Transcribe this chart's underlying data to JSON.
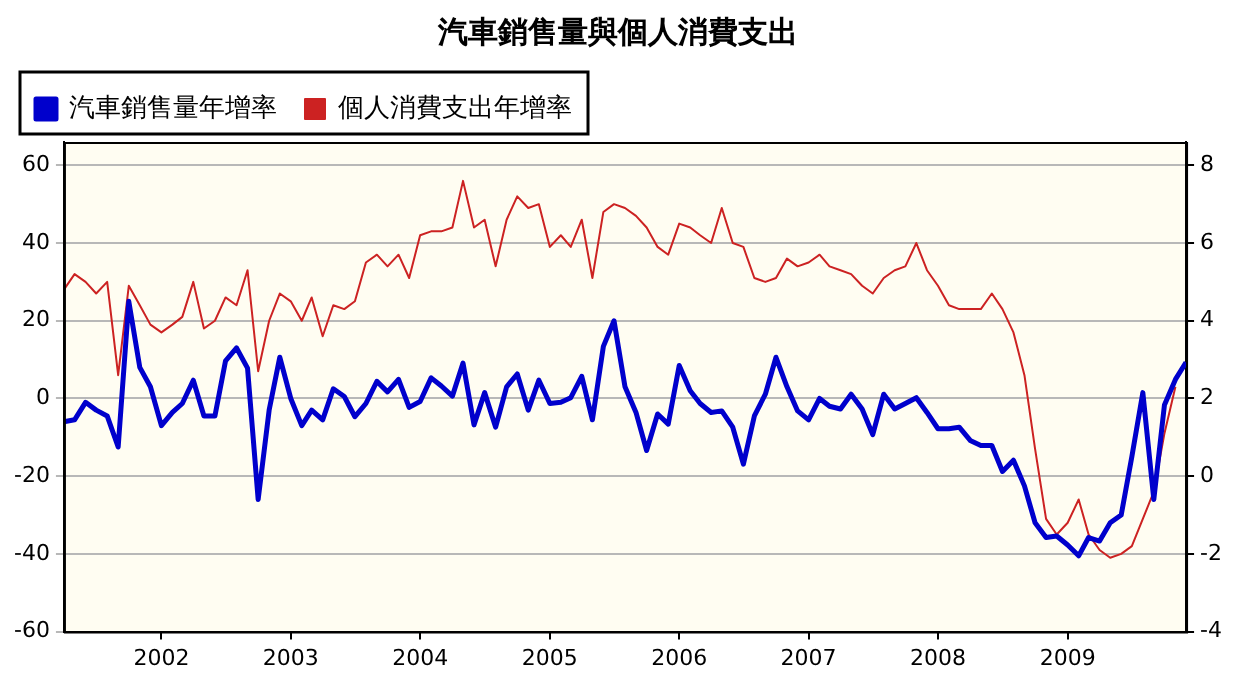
{
  "chart_data": {
    "type": "line",
    "title": "汽車銷售量與個人消費支出",
    "x": [
      "2001-04",
      "2001-05",
      "2001-06",
      "2001-07",
      "2001-08",
      "2001-09",
      "2001-10",
      "2001-11",
      "2001-12",
      "2002-01",
      "2002-02",
      "2002-03",
      "2002-04",
      "2002-05",
      "2002-06",
      "2002-07",
      "2002-08",
      "2002-09",
      "2002-10",
      "2002-11",
      "2002-12",
      "2003-01",
      "2003-02",
      "2003-03",
      "2003-04",
      "2003-05",
      "2003-06",
      "2003-07",
      "2003-08",
      "2003-09",
      "2003-10",
      "2003-11",
      "2003-12",
      "2004-01",
      "2004-02",
      "2004-03",
      "2004-04",
      "2004-05",
      "2004-06",
      "2004-07",
      "2004-08",
      "2004-09",
      "2004-10",
      "2004-11",
      "2004-12",
      "2005-01",
      "2005-02",
      "2005-03",
      "2005-04",
      "2005-05",
      "2005-06",
      "2005-07",
      "2005-08",
      "2005-09",
      "2005-10",
      "2005-11",
      "2005-12",
      "2006-01",
      "2006-02",
      "2006-03",
      "2006-04",
      "2006-05",
      "2006-06",
      "2006-07",
      "2006-08",
      "2006-09",
      "2006-10",
      "2006-11",
      "2006-12",
      "2007-01",
      "2007-02",
      "2007-03",
      "2007-04",
      "2007-05",
      "2007-06",
      "2007-07",
      "2007-08",
      "2007-09",
      "2007-10",
      "2007-11",
      "2007-12",
      "2008-01",
      "2008-02",
      "2008-03",
      "2008-04",
      "2008-05",
      "2008-06",
      "2008-07",
      "2008-08",
      "2008-09",
      "2008-10",
      "2008-11",
      "2008-12",
      "2009-01",
      "2009-02",
      "2009-03",
      "2009-04",
      "2009-05",
      "2009-06",
      "2009-07",
      "2009-08",
      "2009-09",
      "2009-10",
      "2009-11",
      "2009-12"
    ],
    "series": [
      {
        "name": "汽車銷售量年增率",
        "color": "#0000cc",
        "values": [
          -6,
          -5.5,
          -1,
          -3,
          -4.5,
          -12.5,
          25,
          8,
          3,
          -7,
          -3.6,
          -1.3,
          4.7,
          -4.5,
          -4.5,
          9.7,
          13,
          7.8,
          -26,
          -3,
          10.6,
          0,
          -7,
          -3,
          -5.5,
          2.5,
          0.5,
          -4.7,
          -1.3,
          4.4,
          1.7,
          4.9,
          -2.3,
          -0.8,
          5.3,
          3.2,
          0.6,
          9.1,
          -6.8,
          1.5,
          -7.4,
          3,
          6.3,
          -3,
          4.7,
          -1.3,
          -1,
          0.2,
          5.7,
          -5.5,
          13.4,
          20,
          3,
          -3.6,
          -13.4,
          -4,
          -6.6,
          8.5,
          2,
          -1.3,
          -3.6,
          -3.2,
          -7.4,
          -16.9,
          -4.5,
          1.1,
          10.6,
          3,
          -3.2,
          -5.5,
          0,
          -2,
          -2.7,
          1.1,
          -2.7,
          -9.3,
          1.1,
          -2.7,
          -1.3,
          0.2,
          -3.6,
          -7.8,
          -7.8,
          -7.4,
          -10.8,
          -12.1,
          -12.1,
          -18.8,
          -15.9,
          -22.5,
          -32,
          -35.8,
          -35.4,
          -37.7,
          -40.5,
          -35.8,
          -36.7,
          -32,
          -30,
          -15,
          1.5,
          -26,
          -1.7,
          4.9,
          9.3
        ]
      },
      {
        "name": "個人消費支出年增率",
        "color": "#cc2222",
        "axis": "y2",
        "values": [
          4.8,
          5.2,
          5,
          4.7,
          5,
          2.6,
          4.9,
          4.4,
          3.9,
          3.7,
          3.9,
          4.1,
          5,
          3.8,
          4,
          4.6,
          4.4,
          5.3,
          2.7,
          4,
          4.7,
          4.5,
          4,
          4.6,
          3.6,
          4.4,
          4.3,
          4.5,
          5.5,
          5.7,
          5.4,
          5.7,
          5.1,
          6.2,
          6.3,
          6.3,
          6.4,
          7.6,
          6.4,
          6.6,
          5.4,
          6.6,
          7.2,
          6.9,
          7,
          5.9,
          6.2,
          5.9,
          6.6,
          5.1,
          6.8,
          7,
          6.9,
          6.7,
          6.4,
          5.9,
          5.7,
          6.5,
          6.4,
          6.2,
          6,
          6.9,
          6,
          5.9,
          5.1,
          5,
          5.1,
          5.6,
          5.4,
          5.5,
          5.7,
          5.4,
          5.3,
          5.2,
          4.9,
          4.7,
          5.1,
          5.3,
          5.4,
          6,
          5.3,
          4.9,
          4.4,
          4.3,
          4.3,
          4.3,
          4.7,
          4.3,
          3.7,
          2.6,
          0.7,
          -1.1,
          -1.5,
          -1.2,
          -0.6,
          -1.5,
          -1.9,
          -2.1,
          -2,
          -1.8,
          -1.1,
          -0.4,
          1.1,
          2.3,
          null
        ]
      }
    ],
    "xlim": [
      "2001-04",
      "2009-12"
    ],
    "xticks": [
      "2002",
      "2003",
      "2004",
      "2005",
      "2006",
      "2007",
      "2008",
      "2009"
    ],
    "ylim": [
      -60,
      66
    ],
    "yticks": [
      -60,
      -40,
      -20,
      0,
      20,
      40,
      60
    ],
    "y2lim": [
      -4,
      8.6
    ],
    "y2ticks": [
      -4,
      -2,
      0,
      2,
      4,
      6,
      8
    ],
    "grid": "y",
    "legend": "top left"
  }
}
